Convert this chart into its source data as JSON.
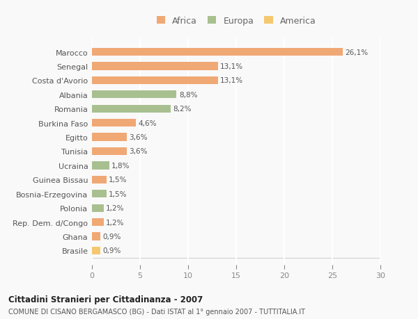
{
  "categories": [
    "Brasile",
    "Ghana",
    "Rep. Dem. d/Congo",
    "Polonia",
    "Bosnia-Erzegovina",
    "Guinea Bissau",
    "Ucraina",
    "Tunisia",
    "Egitto",
    "Burkina Faso",
    "Romania",
    "Albania",
    "Costa d'Avorio",
    "Senegal",
    "Marocco"
  ],
  "values": [
    0.9,
    0.9,
    1.2,
    1.2,
    1.5,
    1.5,
    1.8,
    3.6,
    3.6,
    4.6,
    8.2,
    8.8,
    13.1,
    13.1,
    26.1
  ],
  "labels": [
    "0,9%",
    "0,9%",
    "1,2%",
    "1,2%",
    "1,5%",
    "1,5%",
    "1,8%",
    "3,6%",
    "3,6%",
    "4,6%",
    "8,2%",
    "8,8%",
    "13,1%",
    "13,1%",
    "26,1%"
  ],
  "colors": [
    "#F5C870",
    "#F0A875",
    "#F0A875",
    "#A8C090",
    "#A8C090",
    "#F0A875",
    "#A8C090",
    "#F0A875",
    "#F0A875",
    "#F0A875",
    "#A8C090",
    "#A8C090",
    "#F0A875",
    "#F0A875",
    "#F0A875"
  ],
  "legend_labels": [
    "Africa",
    "Europa",
    "America"
  ],
  "legend_colors": [
    "#F0A875",
    "#A8C090",
    "#F5C870"
  ],
  "title": "Cittadini Stranieri per Cittadinanza - 2007",
  "subtitle": "COMUNE DI CISANO BERGAMASCO (BG) - Dati ISTAT al 1° gennaio 2007 - TUTTITALIA.IT",
  "xlim": [
    0,
    30
  ],
  "xticks": [
    0,
    5,
    10,
    15,
    20,
    25,
    30
  ],
  "background_color": "#F9F9F9",
  "grid_color": "#FFFFFF",
  "bar_height": 0.55
}
